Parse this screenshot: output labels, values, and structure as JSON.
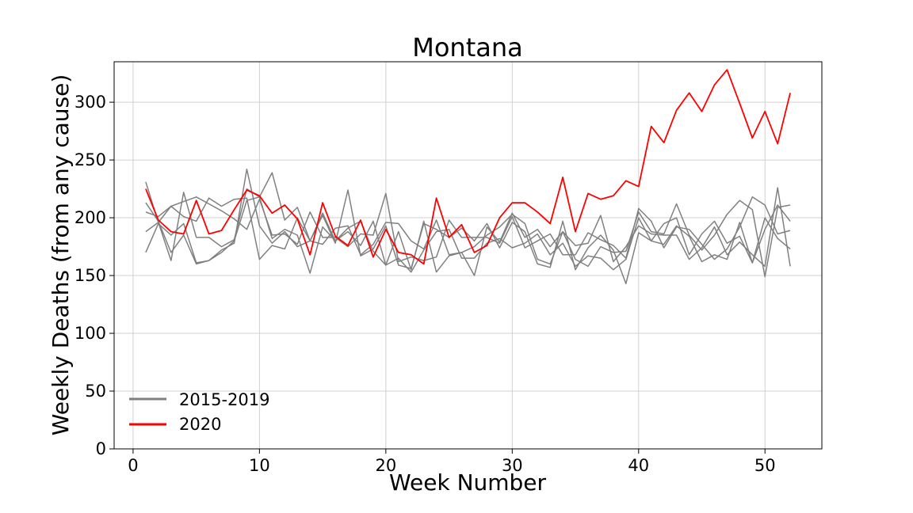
{
  "chart_data": {
    "type": "line",
    "title": "Montana",
    "xlabel": "Week Number",
    "ylabel": "Weekly Deaths (from any cause)",
    "xlim": [
      -1.5,
      54.5
    ],
    "ylim": [
      0,
      335
    ],
    "xticks": [
      0,
      10,
      20,
      30,
      40,
      50
    ],
    "yticks": [
      0,
      50,
      100,
      150,
      200,
      250,
      300
    ],
    "grid": true,
    "legend": {
      "placement": "lower-left",
      "entries": [
        {
          "label": "2015-2019",
          "color": "#808080"
        },
        {
          "label": "2020",
          "color": "#ff0000"
        }
      ]
    },
    "series": [
      {
        "group": "2015-2019",
        "color": "#808080",
        "values": [
          231,
          196,
          163,
          222,
          183,
          183,
          175,
          181,
          225,
          218,
          239,
          198,
          209,
          180,
          204,
          180,
          191,
          197,
          171,
          159,
          188,
          155,
          197,
          153,
          167,
          170,
          150,
          192,
          179,
          204,
          183,
          190,
          175,
          188,
          164,
          158,
          175,
          170,
          171,
          205,
          188,
          186,
          212,
          185,
          172,
          185,
          203,
          215,
          207,
          149,
          209,
          211
        ]
      },
      {
        "group": "2015-2019",
        "color": "#808080",
        "values": [
          170,
          195,
          185,
          195,
          161,
          163,
          170,
          180,
          215,
          218,
          182,
          190,
          185,
          152,
          192,
          180,
          188,
          176,
          197,
          159,
          165,
          153,
          172,
          188,
          190,
          165,
          165,
          178,
          182,
          174,
          178,
          186,
          168,
          178,
          158,
          167,
          165,
          155,
          164,
          200,
          180,
          177,
          193,
          184,
          162,
          168,
          164,
          196,
          161,
          200,
          182,
          173
        ]
      },
      {
        "group": "2015-2019",
        "color": "#808080",
        "values": [
          213,
          197,
          170,
          185,
          160,
          163,
          172,
          178,
          242,
          193,
          178,
          188,
          175,
          180,
          202,
          178,
          224,
          167,
          173,
          193,
          159,
          156,
          195,
          190,
          183,
          191,
          180,
          195,
          174,
          196,
          188,
          160,
          157,
          197,
          155,
          174,
          185,
          172,
          143,
          187,
          180,
          195,
          200,
          168,
          186,
          197,
          178,
          184,
          161,
          190,
          211,
          197
        ]
      },
      {
        "group": "2015-2019",
        "color": "#808080",
        "values": [
          188,
          196,
          210,
          214,
          218,
          212,
          206,
          199,
          190,
          216,
          185,
          186,
          177,
          205,
          183,
          183,
          175,
          186,
          185,
          221,
          162,
          166,
          163,
          166,
          198,
          183,
          183,
          183,
          178,
          201,
          174,
          180,
          186,
          168,
          168,
          187,
          181,
          176,
          165,
          208,
          197,
          174,
          192,
          190,
          177,
          164,
          173,
          192,
          218,
          211,
          186,
          189
        ]
      },
      {
        "group": "2015-2019",
        "color": "#808080",
        "values": [
          205,
          201,
          210,
          201,
          197,
          217,
          210,
          216,
          217,
          164,
          176,
          173,
          200,
          180,
          177,
          191,
          193,
          168,
          177,
          196,
          195,
          180,
          173,
          198,
          168,
          170,
          175,
          185,
          192,
          203,
          195,
          164,
          160,
          188,
          176,
          178,
          202,
          162,
          175,
          193,
          186,
          185,
          185,
          164,
          174,
          192,
          168,
          179,
          168,
          158,
          226,
          158
        ]
      },
      {
        "group": "2020",
        "color": "#ff0000",
        "values": [
          225,
          198,
          188,
          186,
          215,
          186,
          189,
          207,
          224,
          219,
          204,
          211,
          199,
          168,
          213,
          184,
          176,
          198,
          166,
          190,
          170,
          168,
          160,
          217,
          183,
          194,
          170,
          176,
          200,
          213,
          213,
          205,
          195,
          235,
          188,
          221,
          216,
          219,
          232,
          227,
          279,
          265,
          293,
          308,
          292,
          315,
          328,
          299,
          269,
          292,
          264,
          308
        ]
      }
    ]
  }
}
